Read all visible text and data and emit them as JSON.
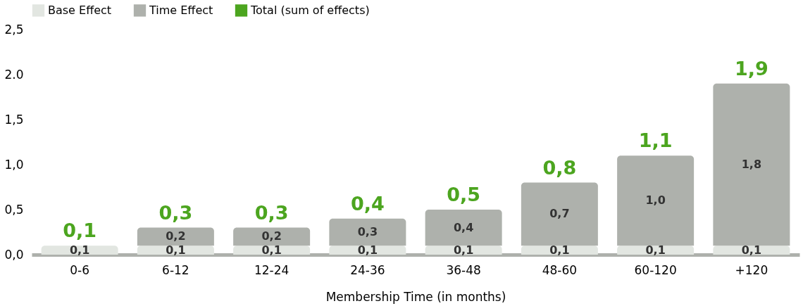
{
  "chart_data": {
    "type": "bar",
    "stacked": true,
    "xlabel": "Membership Time (in months)",
    "categories": [
      "0-6",
      "6-12",
      "12-24",
      "24-36",
      "36-48",
      "48-60",
      "60-120",
      "+120"
    ],
    "series": [
      {
        "name": "Base Effect",
        "color": "#e2e6e1",
        "values": [
          0.1,
          0.1,
          0.1,
          0.1,
          0.1,
          0.1,
          0.1,
          0.1
        ],
        "value_labels": [
          "0,1",
          "0,1",
          "0,1",
          "0,1",
          "0,1",
          "0,1",
          "0,1",
          "0,1"
        ]
      },
      {
        "name": "Time Effect",
        "color": "#aeb1ac",
        "values": [
          null,
          0.2,
          0.2,
          0.3,
          0.4,
          0.7,
          1.0,
          1.8
        ],
        "value_labels": [
          null,
          "0,2",
          "0,2",
          "0,3",
          "0,4",
          "0,7",
          "1,0",
          "1,8"
        ]
      },
      {
        "name": "Total (sum of effects)",
        "color": "#4ca51f",
        "values": [
          null,
          null,
          null,
          null,
          null,
          null,
          null,
          null
        ]
      }
    ],
    "totals": [
      "0,1",
      "0,3",
      "0,3",
      "0,4",
      "0,5",
      "0,8",
      "1,1",
      "1,9"
    ],
    "ylim": [
      0,
      2.5
    ],
    "yticks": [
      {
        "value": 0,
        "label": "0,0"
      },
      {
        "value": 0.5,
        "label": "0,5"
      },
      {
        "value": 1,
        "label": "1,0"
      },
      {
        "value": 1.5,
        "label": "1,5"
      },
      {
        "value": 2,
        "label": "2.0"
      },
      {
        "value": 2.5,
        "label": "2,5"
      }
    ],
    "grid": false,
    "legend": "top left"
  }
}
